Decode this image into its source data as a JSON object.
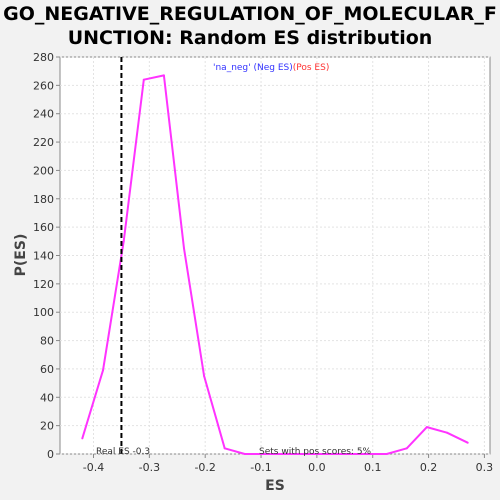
{
  "chart_data": {
    "type": "line",
    "title": "GO_NEGATIVE_REGULATION_OF_MOLECULAR_FUNCTION: Random ES distribution",
    "xlabel": "ES",
    "ylabel": "P(ES)",
    "xlim": [
      -0.46,
      0.31
    ],
    "ylim": [
      0,
      280
    ],
    "x_ticks": [
      "-0.4",
      "-0.3",
      "-0.2",
      "-0.1",
      "0.0",
      "0.1",
      "0.2",
      "0.3"
    ],
    "y_ticks": [
      "0",
      "20",
      "40",
      "60",
      "80",
      "100",
      "120",
      "140",
      "160",
      "180",
      "200",
      "220",
      "240",
      "260",
      "280"
    ],
    "grid": true,
    "legend": {
      "position": "top-center",
      "items": [
        {
          "text": "'na_neg' (Neg ES)",
          "color": "#3333ff"
        },
        {
          "text": "(Pos ES)",
          "color": "#ff3333"
        }
      ]
    },
    "series": [
      {
        "color": "#ff33ff",
        "x": [
          -0.42,
          -0.383,
          -0.346,
          -0.31,
          -0.274,
          -0.238,
          -0.202,
          -0.165,
          -0.129,
          -0.093,
          -0.057,
          -0.02,
          0.016,
          0.052,
          0.088,
          0.125,
          0.161,
          0.197,
          0.233,
          0.27
        ],
        "y": [
          11,
          59,
          150,
          264,
          267,
          145,
          55,
          4,
          0,
          0,
          0,
          0,
          0,
          0,
          0,
          0,
          4,
          19,
          15,
          8
        ]
      }
    ],
    "real_es": {
      "value": -0.35,
      "label": "Real ES -0.3"
    },
    "annotation": "Sets with pos scores: 5%"
  }
}
